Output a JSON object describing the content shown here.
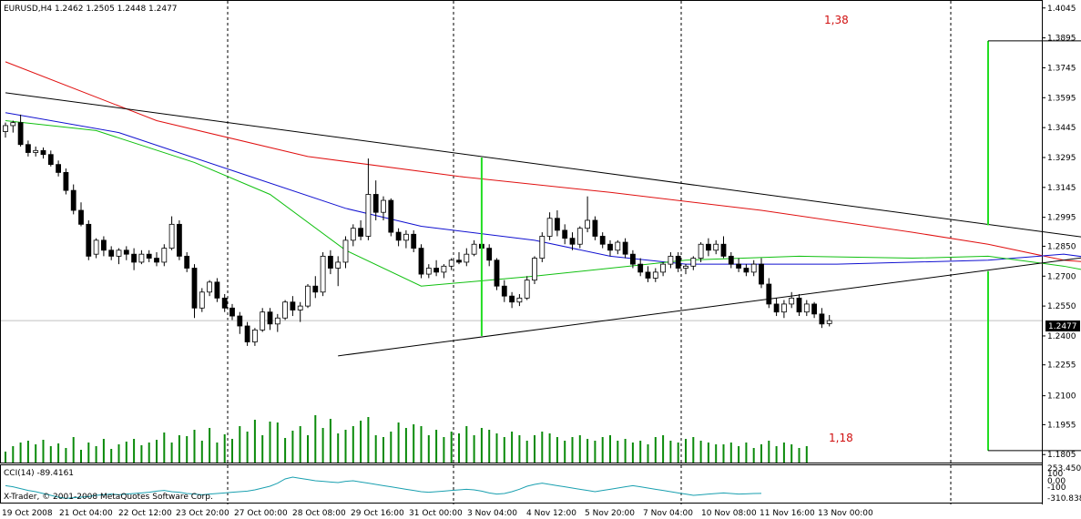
{
  "header": {
    "symbol_line": "EURUSD,H4  1.2462 1.2505 1.2448 1.2477"
  },
  "indicator": {
    "label": "CCI(14) -89.4161",
    "axis": [
      "253.450",
      "100",
      "0.00",
      "-100",
      "-310.838"
    ]
  },
  "copyright": "X-Trader, © 2001-2008 MetaQuotes Software Corp.",
  "annotations": {
    "target_up": "1,38",
    "target_down": "1,18",
    "current_price": "1.2477"
  },
  "colors": {
    "bull": "#ffffff",
    "bear": "#000000",
    "ma_red": "#e01010",
    "ma_blue": "#1010d0",
    "ma_green": "#10c010",
    "volume": "#0a8a0a",
    "cci": "#1aa0b0",
    "grid": "#000000"
  },
  "chart_data": {
    "type": "candlestick",
    "symbol": "EURUSD",
    "timeframe": "H4",
    "y_ticks": [
      "1.4045",
      "1.3895",
      "1.3745",
      "1.3595",
      "1.3445",
      "1.3295",
      "1.3145",
      "1.2995",
      "1.2850",
      "1.2700",
      "1.2550",
      "1.2400",
      "1.2255",
      "1.2100",
      "1.1955",
      "1.1805"
    ],
    "ylim": [
      1.1765,
      1.4085
    ],
    "x_labels": [
      "19 Oct 2008",
      "21 Oct 04:00",
      "22 Oct 12:00",
      "23 Oct 20:00",
      "27 Oct 00:00",
      "28 Oct 08:00",
      "29 Oct 16:00",
      "31 Oct 00:00",
      "3 Nov 04:00",
      "4 Nov 12:00",
      "5 Nov 20:00",
      "7 Nov 04:00",
      "10 Nov 08:00",
      "11 Nov 16:00",
      "13 Nov 00:00"
    ],
    "current_price": 1.2477,
    "trendlines": [
      {
        "name": "upper",
        "p1": [
          0,
          1.362
        ],
        "p2": [
          183,
          1.269
        ]
      },
      {
        "name": "lower",
        "p1": [
          44,
          1.23
        ],
        "p2": [
          183,
          1.2995
        ]
      }
    ],
    "vertical_marks": [
      {
        "name": "pole",
        "x": 63,
        "low": 1.24,
        "high": 1.3295
      },
      {
        "name": "target_up",
        "x": 130,
        "low": 1.2955,
        "high": 1.388,
        "x_end": 162
      },
      {
        "name": "target_down",
        "x": 130,
        "low": 1.1825,
        "high": 1.2725,
        "x_end": 162
      }
    ],
    "candles": [
      [
        1.3425,
        1.347,
        1.3395,
        1.3455
      ],
      [
        1.3455,
        1.348,
        1.342,
        1.347
      ],
      [
        1.347,
        1.351,
        1.335,
        1.336
      ],
      [
        1.336,
        1.338,
        1.33,
        1.332
      ],
      [
        1.332,
        1.335,
        1.33,
        1.333
      ],
      [
        1.333,
        1.3345,
        1.329,
        1.331
      ],
      [
        1.331,
        1.333,
        1.325,
        1.326
      ],
      [
        1.326,
        1.328,
        1.32,
        1.322
      ],
      [
        1.322,
        1.324,
        1.311,
        1.313
      ],
      [
        1.313,
        1.316,
        1.301,
        1.303
      ],
      [
        1.303,
        1.307,
        1.295,
        1.296
      ],
      [
        1.296,
        1.298,
        1.278,
        1.28
      ],
      [
        1.281,
        1.289,
        1.279,
        1.288
      ],
      [
        1.288,
        1.29,
        1.28,
        1.283
      ],
      [
        1.283,
        1.285,
        1.278,
        1.28
      ],
      [
        1.28,
        1.284,
        1.276,
        1.283
      ],
      [
        1.283,
        1.285,
        1.278,
        1.281
      ],
      [
        1.281,
        1.284,
        1.273,
        1.277
      ],
      [
        1.277,
        1.283,
        1.276,
        1.281
      ],
      [
        1.281,
        1.283,
        1.277,
        1.279
      ],
      [
        1.279,
        1.282,
        1.275,
        1.277
      ],
      [
        1.277,
        1.286,
        1.275,
        1.284
      ],
      [
        1.284,
        1.3,
        1.283,
        1.296
      ],
      [
        1.296,
        1.298,
        1.278,
        1.28
      ],
      [
        1.28,
        1.282,
        1.272,
        1.274
      ],
      [
        1.274,
        1.276,
        1.249,
        1.254
      ],
      [
        1.254,
        1.264,
        1.252,
        1.262
      ],
      [
        1.262,
        1.268,
        1.26,
        1.267
      ],
      [
        1.267,
        1.269,
        1.257,
        1.259
      ],
      [
        1.259,
        1.261,
        1.252,
        1.254
      ],
      [
        1.254,
        1.256,
        1.248,
        1.25
      ],
      [
        1.25,
        1.252,
        1.241,
        1.245
      ],
      [
        1.245,
        1.247,
        1.235,
        1.237
      ],
      [
        1.237,
        1.244,
        1.235,
        1.243
      ],
      [
        1.243,
        1.254,
        1.242,
        1.252
      ],
      [
        1.252,
        1.254,
        1.243,
        1.246
      ],
      [
        1.246,
        1.251,
        1.242,
        1.249
      ],
      [
        1.249,
        1.258,
        1.248,
        1.257
      ],
      [
        1.257,
        1.26,
        1.25,
        1.253
      ],
      [
        1.253,
        1.257,
        1.247,
        1.255
      ],
      [
        1.255,
        1.266,
        1.254,
        1.265
      ],
      [
        1.265,
        1.27,
        1.259,
        1.262
      ],
      [
        1.262,
        1.282,
        1.26,
        1.28
      ],
      [
        1.28,
        1.283,
        1.271,
        1.274
      ],
      [
        1.274,
        1.28,
        1.265,
        1.277
      ],
      [
        1.277,
        1.29,
        1.274,
        1.288
      ],
      [
        1.288,
        1.296,
        1.285,
        1.294
      ],
      [
        1.294,
        1.298,
        1.288,
        1.29
      ],
      [
        1.29,
        1.329,
        1.288,
        1.311
      ],
      [
        1.311,
        1.318,
        1.298,
        1.302
      ],
      [
        1.302,
        1.31,
        1.298,
        1.308
      ],
      [
        1.308,
        1.309,
        1.29,
        1.292
      ],
      [
        1.292,
        1.294,
        1.285,
        1.288
      ],
      [
        1.288,
        1.293,
        1.284,
        1.291
      ],
      [
        1.291,
        1.293,
        1.282,
        1.284
      ],
      [
        1.284,
        1.286,
        1.269,
        1.271
      ],
      [
        1.271,
        1.276,
        1.269,
        1.274
      ],
      [
        1.274,
        1.278,
        1.27,
        1.272
      ],
      [
        1.272,
        1.276,
        1.269,
        1.275
      ],
      [
        1.275,
        1.279,
        1.273,
        1.278
      ],
      [
        1.278,
        1.282,
        1.276,
        1.277
      ],
      [
        1.277,
        1.284,
        1.275,
        1.281
      ],
      [
        1.281,
        1.288,
        1.28,
        1.286
      ],
      [
        1.286,
        1.289,
        1.281,
        1.284
      ],
      [
        1.284,
        1.286,
        1.275,
        1.278
      ],
      [
        1.278,
        1.279,
        1.263,
        1.265
      ],
      [
        1.265,
        1.268,
        1.257,
        1.26
      ],
      [
        1.26,
        1.262,
        1.254,
        1.257
      ],
      [
        1.257,
        1.261,
        1.255,
        1.259
      ],
      [
        1.259,
        1.27,
        1.258,
        1.268
      ],
      [
        1.268,
        1.28,
        1.266,
        1.279
      ],
      [
        1.279,
        1.292,
        1.277,
        1.29
      ],
      [
        1.29,
        1.302,
        1.288,
        1.299
      ],
      [
        1.299,
        1.303,
        1.29,
        1.293
      ],
      [
        1.293,
        1.296,
        1.286,
        1.289
      ],
      [
        1.289,
        1.292,
        1.283,
        1.286
      ],
      [
        1.286,
        1.295,
        1.284,
        1.294
      ],
      [
        1.294,
        1.31,
        1.292,
        1.298
      ],
      [
        1.298,
        1.3,
        1.288,
        1.29
      ],
      [
        1.29,
        1.292,
        1.284,
        1.286
      ],
      [
        1.286,
        1.288,
        1.28,
        1.283
      ],
      [
        1.283,
        1.288,
        1.281,
        1.287
      ],
      [
        1.287,
        1.289,
        1.279,
        1.281
      ],
      [
        1.281,
        1.283,
        1.274,
        1.276
      ],
      [
        1.276,
        1.279,
        1.27,
        1.272
      ],
      [
        1.272,
        1.275,
        1.267,
        1.269
      ],
      [
        1.269,
        1.274,
        1.267,
        1.272
      ],
      [
        1.272,
        1.277,
        1.27,
        1.276
      ],
      [
        1.276,
        1.282,
        1.274,
        1.28
      ],
      [
        1.28,
        1.282,
        1.272,
        1.274
      ],
      [
        1.274,
        1.276,
        1.271,
        1.275
      ],
      [
        1.275,
        1.28,
        1.273,
        1.279
      ],
      [
        1.279,
        1.287,
        1.277,
        1.286
      ],
      [
        1.286,
        1.289,
        1.28,
        1.283
      ],
      [
        1.283,
        1.288,
        1.281,
        1.286
      ],
      [
        1.286,
        1.29,
        1.279,
        1.28
      ],
      [
        1.28,
        1.282,
        1.274,
        1.276
      ],
      [
        1.276,
        1.279,
        1.272,
        1.274
      ],
      [
        1.274,
        1.276,
        1.27,
        1.272
      ],
      [
        1.272,
        1.278,
        1.27,
        1.276
      ],
      [
        1.276,
        1.279,
        1.264,
        1.266
      ],
      [
        1.266,
        1.269,
        1.254,
        1.256
      ],
      [
        1.256,
        1.259,
        1.25,
        1.252
      ],
      [
        1.252,
        1.258,
        1.249,
        1.256
      ],
      [
        1.256,
        1.262,
        1.254,
        1.259
      ],
      [
        1.259,
        1.261,
        1.25,
        1.252
      ],
      [
        1.252,
        1.258,
        1.25,
        1.256
      ],
      [
        1.256,
        1.257,
        1.249,
        1.251
      ],
      [
        1.251,
        1.254,
        1.244,
        1.246
      ],
      [
        1.2462,
        1.2505,
        1.2448,
        1.2477
      ]
    ],
    "moving_averages": [
      {
        "name": "red",
        "points": [
          [
            0,
            1.3775
          ],
          [
            20,
            1.348
          ],
          [
            40,
            1.33
          ],
          [
            60,
            1.32
          ],
          [
            80,
            1.312
          ],
          [
            100,
            1.303
          ],
          [
            120,
            1.292
          ],
          [
            130,
            1.286
          ],
          [
            140,
            1.278
          ],
          [
            150,
            1.275
          ]
        ]
      },
      {
        "name": "blue",
        "points": [
          [
            0,
            1.352
          ],
          [
            15,
            1.342
          ],
          [
            30,
            1.323
          ],
          [
            45,
            1.304
          ],
          [
            55,
            1.295
          ],
          [
            70,
            1.288
          ],
          [
            80,
            1.28
          ],
          [
            90,
            1.276
          ],
          [
            110,
            1.276
          ],
          [
            130,
            1.278
          ],
          [
            140,
            1.281
          ],
          [
            150,
            1.276
          ]
        ]
      },
      {
        "name": "green",
        "points": [
          [
            0,
            1.348
          ],
          [
            12,
            1.343
          ],
          [
            25,
            1.327
          ],
          [
            35,
            1.311
          ],
          [
            45,
            1.283
          ],
          [
            55,
            1.265
          ],
          [
            70,
            1.27
          ],
          [
            90,
            1.278
          ],
          [
            105,
            1.28
          ],
          [
            120,
            1.279
          ],
          [
            130,
            1.28
          ],
          [
            140,
            1.275
          ],
          [
            150,
            1.268
          ]
        ]
      }
    ],
    "volume": [
      12,
      18,
      22,
      24,
      20,
      25,
      18,
      21,
      16,
      28,
      14,
      22,
      18,
      26,
      15,
      20,
      23,
      26,
      19,
      22,
      25,
      33,
      22,
      30,
      29,
      36,
      24,
      38,
      22,
      31,
      26,
      40,
      34,
      47,
      30,
      45,
      44,
      27,
      35,
      40,
      30,
      52,
      38,
      48,
      32,
      36,
      40,
      46,
      50,
      30,
      28,
      34,
      44,
      38,
      42,
      40,
      30,
      36,
      28,
      34,
      32,
      40,
      30,
      38,
      36,
      32,
      28,
      34,
      30,
      24,
      30,
      34,
      32,
      28,
      24,
      28,
      30,
      26,
      24,
      28,
      30,
      24,
      26,
      22,
      24,
      20,
      28,
      30,
      24,
      22,
      26,
      28,
      24,
      22,
      20,
      20,
      22,
      18,
      22,
      16,
      20,
      24,
      18,
      22,
      20,
      16,
      18
    ],
    "cci": [
      40,
      20,
      -10,
      -40,
      -60,
      -90,
      -120,
      -150,
      -170,
      -160,
      -150,
      -140,
      -120,
      -110,
      -100,
      -110,
      -100,
      -90,
      -80,
      -70,
      -50,
      -40,
      -60,
      -70,
      -90,
      -100,
      -110,
      -100,
      -90,
      -80,
      -70,
      -60,
      -50,
      -30,
      0,
      30,
      80,
      150,
      180,
      160,
      140,
      120,
      110,
      100,
      90,
      110,
      120,
      100,
      80,
      60,
      40,
      20,
      0,
      -20,
      -40,
      -60,
      -70,
      -60,
      -50,
      -40,
      -30,
      -20,
      -30,
      -50,
      -80,
      -100,
      -90,
      -60,
      -20,
      30,
      60,
      80,
      60,
      40,
      20,
      0,
      -20,
      -40,
      -60,
      -40,
      -20,
      0,
      20,
      40,
      20,
      0,
      -20,
      -40,
      -60,
      -80,
      -100,
      -120,
      -110,
      -100,
      -90,
      -80,
      -90,
      -100,
      -95,
      -90,
      -89
    ]
  }
}
